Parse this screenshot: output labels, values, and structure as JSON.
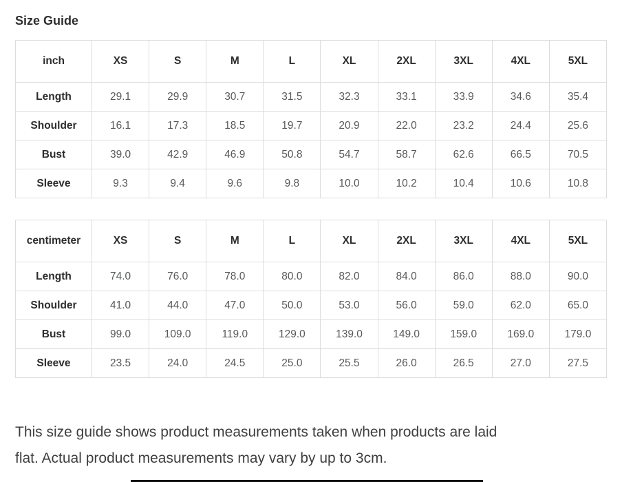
{
  "page_title": "Size Guide",
  "tables": [
    {
      "unit_label": "inch",
      "size_headers": [
        "XS",
        "S",
        "M",
        "L",
        "XL",
        "2XL",
        "3XL",
        "4XL",
        "5XL"
      ],
      "rows": [
        {
          "label": "Length",
          "values": [
            "29.1",
            "29.9",
            "30.7",
            "31.5",
            "32.3",
            "33.1",
            "33.9",
            "34.6",
            "35.4"
          ]
        },
        {
          "label": "Shoulder",
          "values": [
            "16.1",
            "17.3",
            "18.5",
            "19.7",
            "20.9",
            "22.0",
            "23.2",
            "24.4",
            "25.6"
          ]
        },
        {
          "label": "Bust",
          "values": [
            "39.0",
            "42.9",
            "46.9",
            "50.8",
            "54.7",
            "58.7",
            "62.6",
            "66.5",
            "70.5"
          ]
        },
        {
          "label": "Sleeve",
          "values": [
            "9.3",
            "9.4",
            "9.6",
            "9.8",
            "10.0",
            "10.2",
            "10.4",
            "10.6",
            "10.8"
          ]
        }
      ]
    },
    {
      "unit_label": "centimeter",
      "size_headers": [
        "XS",
        "S",
        "M",
        "L",
        "XL",
        "2XL",
        "3XL",
        "4XL",
        "5XL"
      ],
      "rows": [
        {
          "label": "Length",
          "values": [
            "74.0",
            "76.0",
            "78.0",
            "80.0",
            "82.0",
            "84.0",
            "86.0",
            "88.0",
            "90.0"
          ]
        },
        {
          "label": "Shoulder",
          "values": [
            "41.0",
            "44.0",
            "47.0",
            "50.0",
            "53.0",
            "56.0",
            "59.0",
            "62.0",
            "65.0"
          ]
        },
        {
          "label": "Bust",
          "values": [
            "99.0",
            "109.0",
            "119.0",
            "129.0",
            "139.0",
            "149.0",
            "159.0",
            "169.0",
            "179.0"
          ]
        },
        {
          "label": "Sleeve",
          "values": [
            "23.5",
            "24.0",
            "24.5",
            "25.0",
            "25.5",
            "26.0",
            "26.5",
            "27.0",
            "27.5"
          ]
        }
      ]
    }
  ],
  "note": {
    "line1": "This size guide shows product measurements taken when products are laid",
    "line2": "flat. Actual product measurements may vary by up to 3cm."
  }
}
